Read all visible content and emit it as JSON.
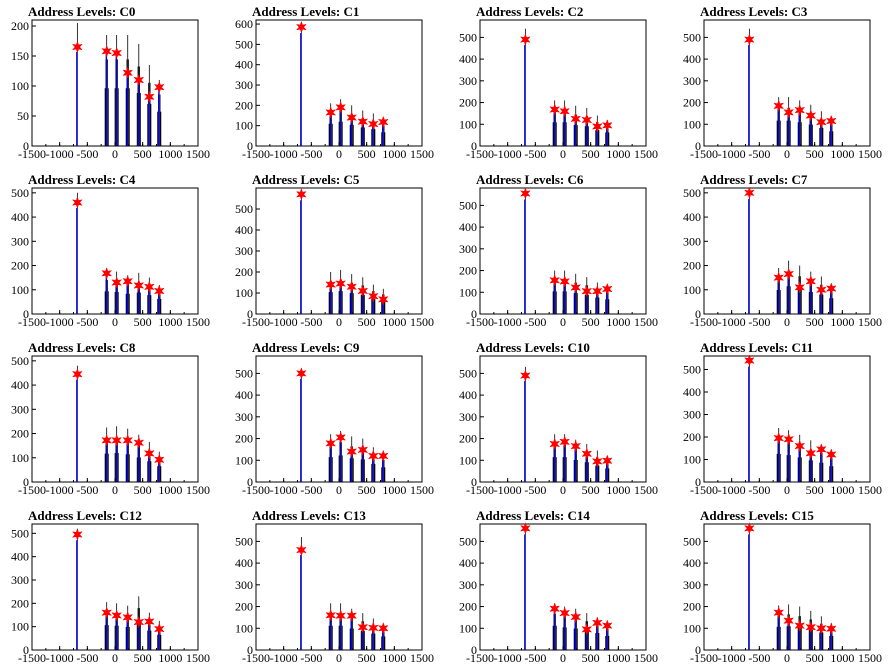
{
  "figure": {
    "title_prefix": "Address Levels: "
  },
  "style": {
    "frame_color": "#000000",
    "hist_dark": "#000000",
    "hist_fit": "#0000ff",
    "marker_color": "#ff0000"
  },
  "chart_data": [
    {
      "type": "bar",
      "title": "Address Levels: C0",
      "xlim": [
        -1500,
        1500
      ],
      "ylim": [
        0,
        210
      ],
      "x_ticks": [
        -1500,
        -1000,
        -500,
        0,
        500,
        1000,
        1500
      ],
      "y_ticks": [
        0,
        50,
        100,
        150,
        200
      ],
      "peaks": [
        {
          "x": -680,
          "y": 165,
          "h": 205
        },
        {
          "x": -150,
          "y": 158,
          "h": 185
        },
        {
          "x": 30,
          "y": 155,
          "h": 185
        },
        {
          "x": 230,
          "y": 122,
          "h": 185
        },
        {
          "x": 430,
          "y": 110,
          "h": 170
        },
        {
          "x": 620,
          "y": 82,
          "h": 135
        },
        {
          "x": 800,
          "y": 98,
          "h": 110
        }
      ]
    },
    {
      "type": "bar",
      "title": "Address Levels: C1",
      "xlim": [
        -1500,
        1500
      ],
      "ylim": [
        0,
        620
      ],
      "x_ticks": [
        -1500,
        -1000,
        -500,
        0,
        500,
        1000,
        1500
      ],
      "y_ticks": [
        0,
        100,
        200,
        300,
        400,
        500,
        600
      ],
      "peaks": [
        {
          "x": -680,
          "y": 585,
          "h": 610
        },
        {
          "x": -150,
          "y": 165,
          "h": 210
        },
        {
          "x": 30,
          "y": 190,
          "h": 230
        },
        {
          "x": 230,
          "y": 140,
          "h": 200
        },
        {
          "x": 430,
          "y": 120,
          "h": 175
        },
        {
          "x": 620,
          "y": 108,
          "h": 160
        },
        {
          "x": 800,
          "y": 118,
          "h": 130
        }
      ]
    },
    {
      "type": "bar",
      "title": "Address Levels: C2",
      "xlim": [
        -1500,
        1500
      ],
      "ylim": [
        0,
        580
      ],
      "x_ticks": [
        -1500,
        -1000,
        -500,
        0,
        500,
        1000,
        1500
      ],
      "y_ticks": [
        0,
        100,
        200,
        300,
        400,
        500
      ],
      "peaks": [
        {
          "x": -680,
          "y": 490,
          "h": 540
        },
        {
          "x": -150,
          "y": 168,
          "h": 210
        },
        {
          "x": 30,
          "y": 160,
          "h": 210
        },
        {
          "x": 230,
          "y": 125,
          "h": 185
        },
        {
          "x": 430,
          "y": 120,
          "h": 175
        },
        {
          "x": 620,
          "y": 90,
          "h": 140
        },
        {
          "x": 800,
          "y": 95,
          "h": 120
        }
      ]
    },
    {
      "type": "bar",
      "title": "Address Levels: C3",
      "xlim": [
        -1500,
        1500
      ],
      "ylim": [
        0,
        580
      ],
      "x_ticks": [
        -1500,
        -1000,
        -500,
        0,
        500,
        1000,
        1500
      ],
      "y_ticks": [
        0,
        100,
        200,
        300,
        400,
        500
      ],
      "peaks": [
        {
          "x": -680,
          "y": 490,
          "h": 540
        },
        {
          "x": -150,
          "y": 185,
          "h": 225
        },
        {
          "x": 30,
          "y": 155,
          "h": 225
        },
        {
          "x": 230,
          "y": 165,
          "h": 210
        },
        {
          "x": 430,
          "y": 140,
          "h": 190
        },
        {
          "x": 620,
          "y": 110,
          "h": 160
        },
        {
          "x": 800,
          "y": 115,
          "h": 130
        }
      ]
    },
    {
      "type": "bar",
      "title": "Address Levels: C4",
      "xlim": [
        -1500,
        1500
      ],
      "ylim": [
        0,
        520
      ],
      "x_ticks": [
        -1500,
        -1000,
        -500,
        0,
        500,
        1000,
        1500
      ],
      "y_ticks": [
        0,
        100,
        200,
        300,
        400,
        500
      ],
      "peaks": [
        {
          "x": -680,
          "y": 460,
          "h": 500
        },
        {
          "x": -150,
          "y": 168,
          "h": 180
        },
        {
          "x": 30,
          "y": 130,
          "h": 175
        },
        {
          "x": 230,
          "y": 135,
          "h": 160
        },
        {
          "x": 430,
          "y": 118,
          "h": 170
        },
        {
          "x": 620,
          "y": 112,
          "h": 150
        },
        {
          "x": 800,
          "y": 95,
          "h": 120
        }
      ]
    },
    {
      "type": "bar",
      "title": "Address Levels: C5",
      "xlim": [
        -1500,
        1500
      ],
      "ylim": [
        0,
        600
      ],
      "x_ticks": [
        -1500,
        -1000,
        -500,
        0,
        500,
        1000,
        1500
      ],
      "y_ticks": [
        0,
        100,
        200,
        300,
        400,
        500
      ],
      "peaks": [
        {
          "x": -680,
          "y": 570,
          "h": 590
        },
        {
          "x": -150,
          "y": 140,
          "h": 200
        },
        {
          "x": 30,
          "y": 145,
          "h": 210
        },
        {
          "x": 230,
          "y": 130,
          "h": 190
        },
        {
          "x": 430,
          "y": 110,
          "h": 175
        },
        {
          "x": 620,
          "y": 85,
          "h": 140
        },
        {
          "x": 800,
          "y": 70,
          "h": 120
        }
      ]
    },
    {
      "type": "bar",
      "title": "Address Levels: C6",
      "xlim": [
        -1500,
        1500
      ],
      "ylim": [
        0,
        580
      ],
      "x_ticks": [
        -1500,
        -1000,
        -500,
        0,
        500,
        1000,
        1500
      ],
      "y_ticks": [
        0,
        100,
        200,
        300,
        400,
        500
      ],
      "peaks": [
        {
          "x": -680,
          "y": 555,
          "h": 575
        },
        {
          "x": -150,
          "y": 155,
          "h": 200
        },
        {
          "x": 30,
          "y": 150,
          "h": 200
        },
        {
          "x": 230,
          "y": 122,
          "h": 185
        },
        {
          "x": 430,
          "y": 105,
          "h": 170
        },
        {
          "x": 620,
          "y": 105,
          "h": 145
        },
        {
          "x": 800,
          "y": 115,
          "h": 130
        }
      ]
    },
    {
      "type": "bar",
      "title": "Address Levels: C7",
      "xlim": [
        -1500,
        1500
      ],
      "ylim": [
        0,
        520
      ],
      "x_ticks": [
        -1500,
        -1000,
        -500,
        0,
        500,
        1000,
        1500
      ],
      "y_ticks": [
        0,
        100,
        200,
        300,
        400,
        500
      ],
      "peaks": [
        {
          "x": -680,
          "y": 500,
          "h": 510
        },
        {
          "x": -150,
          "y": 150,
          "h": 190
        },
        {
          "x": 30,
          "y": 165,
          "h": 220
        },
        {
          "x": 230,
          "y": 110,
          "h": 200
        },
        {
          "x": 430,
          "y": 135,
          "h": 175
        },
        {
          "x": 620,
          "y": 100,
          "h": 155
        },
        {
          "x": 800,
          "y": 105,
          "h": 125
        }
      ]
    },
    {
      "type": "bar",
      "title": "Address Levels: C8",
      "xlim": [
        -1500,
        1500
      ],
      "ylim": [
        0,
        520
      ],
      "x_ticks": [
        -1500,
        -1000,
        -500,
        0,
        500,
        1000,
        1500
      ],
      "y_ticks": [
        0,
        100,
        200,
        300,
        400,
        500
      ],
      "peaks": [
        {
          "x": -680,
          "y": 445,
          "h": 480
        },
        {
          "x": -150,
          "y": 172,
          "h": 225
        },
        {
          "x": 30,
          "y": 172,
          "h": 230
        },
        {
          "x": 230,
          "y": 172,
          "h": 220
        },
        {
          "x": 430,
          "y": 162,
          "h": 195
        },
        {
          "x": 620,
          "y": 118,
          "h": 165
        },
        {
          "x": 800,
          "y": 92,
          "h": 125
        }
      ]
    },
    {
      "type": "bar",
      "title": "Address Levels: C9",
      "xlim": [
        -1500,
        1500
      ],
      "ylim": [
        0,
        580
      ],
      "x_ticks": [
        -1500,
        -1000,
        -500,
        0,
        500,
        1000,
        1500
      ],
      "y_ticks": [
        0,
        100,
        200,
        300,
        400,
        500
      ],
      "peaks": [
        {
          "x": -680,
          "y": 500,
          "h": 520
        },
        {
          "x": -150,
          "y": 178,
          "h": 220
        },
        {
          "x": 30,
          "y": 205,
          "h": 235
        },
        {
          "x": 230,
          "y": 140,
          "h": 210
        },
        {
          "x": 430,
          "y": 148,
          "h": 200
        },
        {
          "x": 620,
          "y": 120,
          "h": 160
        },
        {
          "x": 800,
          "y": 120,
          "h": 130
        }
      ]
    },
    {
      "type": "bar",
      "title": "Address Levels: C10",
      "xlim": [
        -1500,
        1500
      ],
      "ylim": [
        0,
        580
      ],
      "x_ticks": [
        -1500,
        -1000,
        -500,
        0,
        500,
        1000,
        1500
      ],
      "y_ticks": [
        0,
        100,
        200,
        300,
        400,
        500
      ],
      "peaks": [
        {
          "x": -680,
          "y": 490,
          "h": 530
        },
        {
          "x": -150,
          "y": 175,
          "h": 220
        },
        {
          "x": 30,
          "y": 185,
          "h": 220
        },
        {
          "x": 230,
          "y": 165,
          "h": 195
        },
        {
          "x": 430,
          "y": 130,
          "h": 175
        },
        {
          "x": 620,
          "y": 95,
          "h": 145
        },
        {
          "x": 800,
          "y": 98,
          "h": 120
        }
      ]
    },
    {
      "type": "bar",
      "title": "Address Levels: C11",
      "xlim": [
        -1500,
        1500
      ],
      "ylim": [
        0,
        560
      ],
      "x_ticks": [
        -1500,
        -1000,
        -500,
        0,
        500,
        1000,
        1500
      ],
      "y_ticks": [
        0,
        100,
        200,
        300,
        400,
        500
      ],
      "peaks": [
        {
          "x": -680,
          "y": 540,
          "h": 550
        },
        {
          "x": -150,
          "y": 195,
          "h": 240
        },
        {
          "x": 30,
          "y": 190,
          "h": 230
        },
        {
          "x": 230,
          "y": 160,
          "h": 210
        },
        {
          "x": 430,
          "y": 128,
          "h": 185
        },
        {
          "x": 620,
          "y": 145,
          "h": 165
        },
        {
          "x": 800,
          "y": 122,
          "h": 135
        }
      ]
    },
    {
      "type": "bar",
      "title": "Address Levels: C12",
      "xlim": [
        -1500,
        1500
      ],
      "ylim": [
        0,
        540
      ],
      "x_ticks": [
        -1500,
        -1000,
        -500,
        0,
        500,
        1000,
        1500
      ],
      "y_ticks": [
        0,
        100,
        200,
        300,
        400,
        500
      ],
      "peaks": [
        {
          "x": -680,
          "y": 495,
          "h": 520
        },
        {
          "x": -150,
          "y": 160,
          "h": 205
        },
        {
          "x": 30,
          "y": 148,
          "h": 200
        },
        {
          "x": 230,
          "y": 140,
          "h": 190
        },
        {
          "x": 430,
          "y": 120,
          "h": 230
        },
        {
          "x": 620,
          "y": 122,
          "h": 160
        },
        {
          "x": 800,
          "y": 90,
          "h": 125
        }
      ]
    },
    {
      "type": "bar",
      "title": "Address Levels: C13",
      "xlim": [
        -1500,
        1500
      ],
      "ylim": [
        0,
        580
      ],
      "x_ticks": [
        -1500,
        -1000,
        -500,
        0,
        500,
        1000,
        1500
      ],
      "y_ticks": [
        0,
        100,
        200,
        300,
        400,
        500
      ],
      "peaks": [
        {
          "x": -680,
          "y": 460,
          "h": 520
        },
        {
          "x": -150,
          "y": 160,
          "h": 215
        },
        {
          "x": 30,
          "y": 158,
          "h": 215
        },
        {
          "x": 230,
          "y": 158,
          "h": 190
        },
        {
          "x": 430,
          "y": 105,
          "h": 170
        },
        {
          "x": 620,
          "y": 102,
          "h": 145
        },
        {
          "x": 800,
          "y": 100,
          "h": 120
        }
      ]
    },
    {
      "type": "bar",
      "title": "Address Levels: C14",
      "xlim": [
        -1500,
        1500
      ],
      "ylim": [
        0,
        580
      ],
      "x_ticks": [
        -1500,
        -1000,
        -500,
        0,
        500,
        1000,
        1500
      ],
      "y_ticks": [
        0,
        100,
        200,
        300,
        400,
        500
      ],
      "peaks": [
        {
          "x": -680,
          "y": 560,
          "h": 570
        },
        {
          "x": -150,
          "y": 190,
          "h": 215
        },
        {
          "x": 30,
          "y": 170,
          "h": 200
        },
        {
          "x": 230,
          "y": 152,
          "h": 190
        },
        {
          "x": 430,
          "y": 95,
          "h": 170
        },
        {
          "x": 620,
          "y": 125,
          "h": 150
        },
        {
          "x": 800,
          "y": 112,
          "h": 125
        }
      ]
    },
    {
      "type": "bar",
      "title": "Address Levels: C15",
      "xlim": [
        -1500,
        1500
      ],
      "ylim": [
        0,
        580
      ],
      "x_ticks": [
        -1500,
        -1000,
        -500,
        0,
        500,
        1000,
        1500
      ],
      "y_ticks": [
        0,
        100,
        200,
        300,
        400,
        500
      ],
      "peaks": [
        {
          "x": -680,
          "y": 560,
          "h": 570
        },
        {
          "x": -150,
          "y": 172,
          "h": 205
        },
        {
          "x": 30,
          "y": 135,
          "h": 210
        },
        {
          "x": 230,
          "y": 112,
          "h": 200
        },
        {
          "x": 430,
          "y": 105,
          "h": 180
        },
        {
          "x": 620,
          "y": 100,
          "h": 155
        },
        {
          "x": 800,
          "y": 98,
          "h": 125
        }
      ]
    }
  ]
}
